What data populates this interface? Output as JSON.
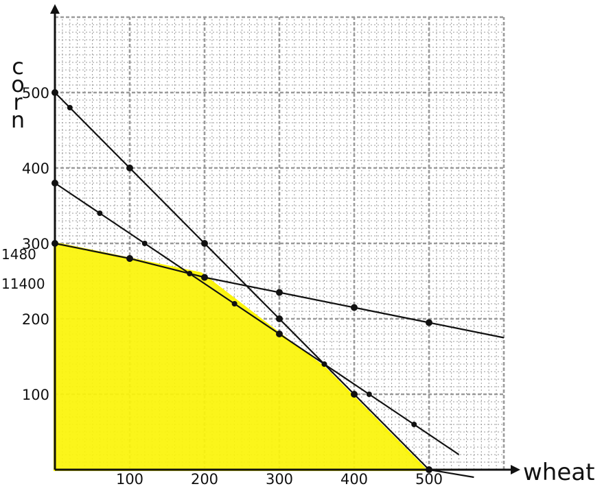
{
  "chart_data": {
    "type": "line",
    "title": "",
    "xlabel": "wheat",
    "ylabel": "corn",
    "xlim": [
      0,
      600
    ],
    "ylim": [
      0,
      600
    ],
    "grid": true,
    "xticks": [
      "100",
      "200",
      "300",
      "400",
      "500"
    ],
    "yticks": [
      "100",
      "200",
      "300",
      "400",
      "500"
    ],
    "side_labels": [
      "1480",
      "11400"
    ],
    "series": [
      {
        "x": [
          0,
          20,
          100,
          200,
          300,
          400,
          500,
          560
        ],
        "y": [
          500,
          480,
          400,
          300,
          200,
          100,
          0,
          -10
        ]
      },
      {
        "x": [
          0,
          60,
          120,
          180,
          240,
          300,
          360,
          420,
          480,
          540
        ],
        "y": [
          380,
          340,
          300,
          260,
          220,
          180,
          140,
          100,
          60,
          20
        ]
      },
      {
        "x": [
          0,
          100,
          200,
          300,
          400,
          500,
          600
        ],
        "y": [
          300,
          280,
          255,
          235,
          215,
          195,
          175
        ]
      }
    ],
    "feasible_region": {
      "x": [
        0,
        0,
        195,
        300,
        360,
        410,
        495
      ],
      "y": [
        0,
        300,
        260,
        180,
        135,
        85,
        0
      ]
    },
    "colors": {
      "feasible_fill": "#fbf40a",
      "grid": "#9a9a9a",
      "ink": "#111111"
    }
  }
}
